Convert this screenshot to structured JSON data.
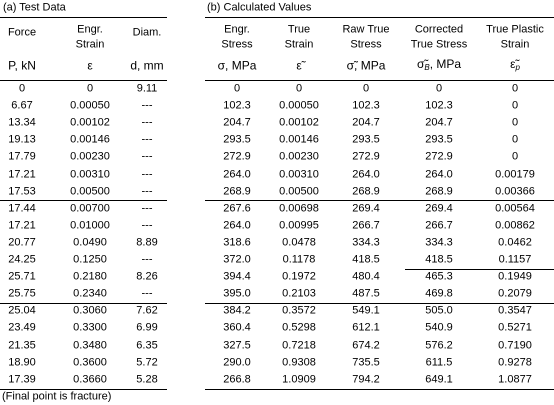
{
  "sections": [
    "(a) Test Data",
    "(b) Calculated Values"
  ],
  "columns": [
    {
      "header": [
        "Force"
      ],
      "unit": [
        "P, kN"
      ]
    },
    {
      "header": [
        "Engr.",
        "Strain"
      ],
      "unit": [
        "ε"
      ]
    },
    {
      "header": [
        "Diam."
      ],
      "unit": [
        "d, mm"
      ]
    },
    {
      "header": [
        "Engr.",
        "Stress"
      ],
      "unit": [
        "σ, MPa"
      ]
    },
    {
      "header": [
        "True",
        "Strain"
      ],
      "unit": [
        "ε̃"
      ]
    },
    {
      "header": [
        "Raw True",
        "Stress"
      ],
      "unit": [
        "σ̃, MPa"
      ]
    },
    {
      "header": [
        "Corrected",
        "True Stress"
      ],
      "unit": [
        "σ̃",
        "B",
        ", MPa"
      ]
    },
    {
      "header": [
        "True Plastic",
        "Strain"
      ],
      "unit": [
        "ε̃",
        "p"
      ]
    }
  ],
  "rows": [
    [
      "0",
      "0",
      "9.11",
      "0",
      "0",
      "0",
      "0",
      "0"
    ],
    [
      "6.67",
      "0.00050",
      "---",
      "102.3",
      "0.00050",
      "102.3",
      "102.3",
      "0"
    ],
    [
      "13.34",
      "0.00102",
      "---",
      "204.7",
      "0.00102",
      "204.7",
      "204.7",
      "0"
    ],
    [
      "19.13",
      "0.00146",
      "---",
      "293.5",
      "0.00146",
      "293.5",
      "293.5",
      "0"
    ],
    [
      "17.79",
      "0.00230",
      "---",
      "272.9",
      "0.00230",
      "272.9",
      "272.9",
      "0"
    ],
    [
      "17.21",
      "0.00310",
      "---",
      "264.0",
      "0.00310",
      "264.0",
      "264.0",
      "0.00179"
    ],
    [
      "17.53",
      "0.00500",
      "---",
      "268.9",
      "0.00500",
      "268.9",
      "268.9",
      "0.00366"
    ],
    [
      "17.44",
      "0.00700",
      "---",
      "267.6",
      "0.00698",
      "269.4",
      "269.4",
      "0.00564"
    ],
    [
      "17.21",
      "0.01000",
      "---",
      "264.0",
      "0.00995",
      "266.7",
      "266.7",
      "0.00862"
    ],
    [
      "20.77",
      "0.0490",
      "8.89",
      "318.6",
      "0.0478",
      "334.3",
      "334.3",
      "0.0462"
    ],
    [
      "24.25",
      "0.1250",
      "---",
      "372.0",
      "0.1178",
      "418.5",
      "418.5",
      "0.1157"
    ],
    [
      "25.71",
      "0.2180",
      "8.26",
      "394.4",
      "0.1972",
      "480.4",
      "465.3",
      "0.1949"
    ],
    [
      "25.75",
      "0.2340",
      "---",
      "395.0",
      "0.2103",
      "487.5",
      "469.8",
      "0.2079"
    ],
    [
      "25.04",
      "0.3060",
      "7.62",
      "384.2",
      "0.3572",
      "549.1",
      "505.0",
      "0.3547"
    ],
    [
      "23.49",
      "0.3300",
      "6.99",
      "360.4",
      "0.5298",
      "612.1",
      "540.9",
      "0.5271"
    ],
    [
      "21.35",
      "0.3480",
      "6.35",
      "327.5",
      "0.7218",
      "674.2",
      "576.2",
      "0.7190"
    ],
    [
      "18.90",
      "0.3600",
      "5.72",
      "290.0",
      "0.9308",
      "735.5",
      "611.5",
      "0.9278"
    ],
    [
      "17.39",
      "0.3660",
      "5.28",
      "266.8",
      "1.0909",
      "794.2",
      "649.1",
      "1.0877"
    ]
  ],
  "footnote": "(Final point is fracture)"
}
